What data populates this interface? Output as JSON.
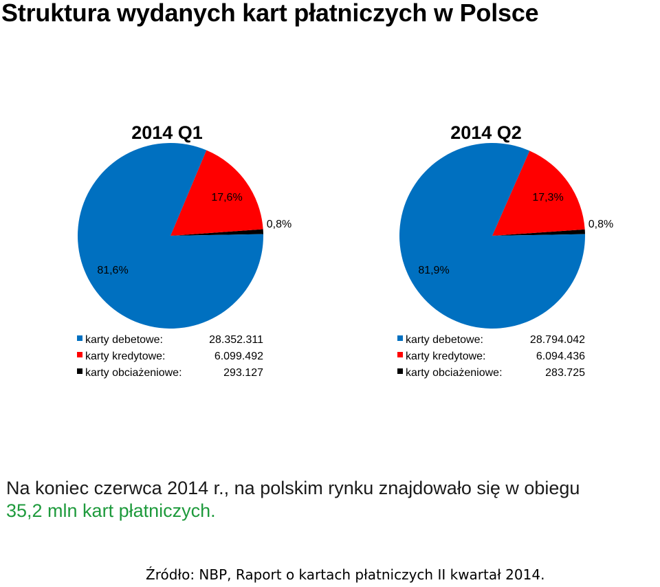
{
  "page": {
    "title": "Struktura wydanych kart płatniczych w Polsce",
    "summary_line1": "Na koniec czerwca 2014 r., na polskim rynku znajdowało się w obiegu",
    "summary_line2": "35,2 mln kart płatniczych.",
    "source": "Źródło: NBP, Raport o kartach płatniczych II kwartał 2014."
  },
  "colors": {
    "debetowe": "#0070c0",
    "kredytowe": "#ff0000",
    "obciazeniowe": "#000000"
  },
  "chart_data": [
    {
      "type": "pie",
      "title": "2014 Q1",
      "slices": [
        {
          "name": "karty debetowe:",
          "value": 28352311,
          "value_label": "28.352.311",
          "percent_label": "81,6%",
          "color": "#0070c0"
        },
        {
          "name": "karty kredytowe:",
          "value": 6099492,
          "value_label": "6.099.492",
          "percent_label": "17,6%",
          "color": "#ff0000"
        },
        {
          "name": "karty obciażeniowe:",
          "value": 293127,
          "value_label": "293.127",
          "percent_label": "0,8%",
          "color": "#000000"
        }
      ],
      "legend": "bottom"
    },
    {
      "type": "pie",
      "title": "2014 Q2",
      "slices": [
        {
          "name": "karty debetowe:",
          "value": 28794042,
          "value_label": "28.794.042",
          "percent_label": "81,9%",
          "color": "#0070c0"
        },
        {
          "name": "karty kredytowe:",
          "value": 6094436,
          "value_label": "6.094.436",
          "percent_label": "17,3%",
          "color": "#ff0000"
        },
        {
          "name": "karty obciażeniowe:",
          "value": 283725,
          "value_label": "283.725",
          "percent_label": "0,8%",
          "color": "#000000"
        }
      ],
      "legend": "bottom"
    }
  ]
}
